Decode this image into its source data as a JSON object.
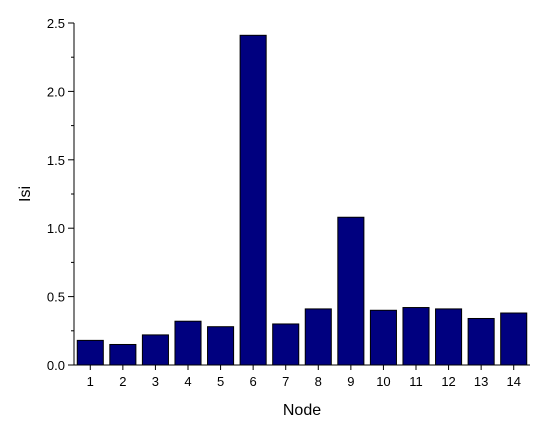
{
  "chart_data": {
    "type": "bar",
    "xlabel": "Node",
    "ylabel": "Isi",
    "categories": [
      "1",
      "2",
      "3",
      "4",
      "5",
      "6",
      "7",
      "8",
      "9",
      "10",
      "11",
      "12",
      "13",
      "14"
    ],
    "values": [
      0.18,
      0.15,
      0.22,
      0.32,
      0.28,
      2.41,
      0.3,
      0.41,
      1.08,
      0.4,
      0.42,
      0.41,
      0.34,
      0.38
    ],
    "ylim": [
      0,
      2.5
    ],
    "yticks": [
      "0.0",
      "0.5",
      "1.0",
      "1.5",
      "2.0",
      "2.5"
    ],
    "grid": false,
    "bar_color": "#00007f"
  }
}
